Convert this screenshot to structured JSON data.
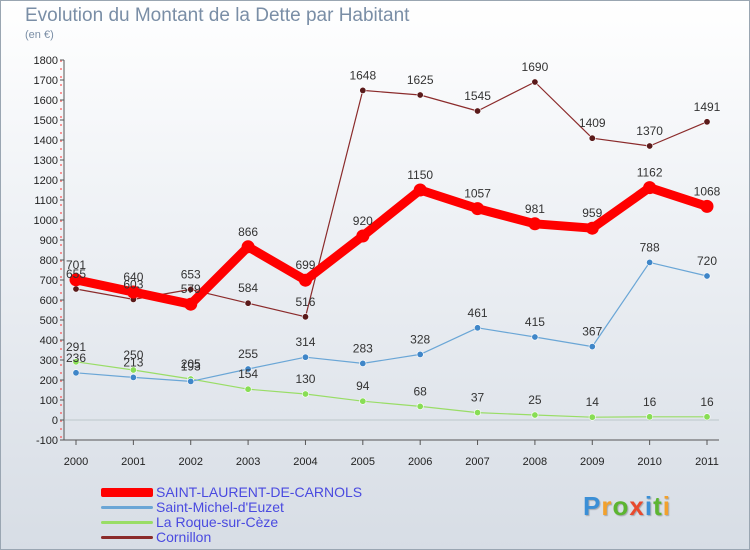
{
  "chart_data": {
    "type": "line",
    "title": "Evolution du Montant de la Dette par Habitant",
    "subtitle": "(en €)",
    "categories": [
      "2000",
      "2001",
      "2002",
      "2003",
      "2004",
      "2005",
      "2006",
      "2007",
      "2008",
      "2009",
      "2010",
      "2011"
    ],
    "ylim": [
      -100,
      1800
    ],
    "yticks": [
      -100,
      0,
      100,
      200,
      300,
      400,
      500,
      600,
      700,
      800,
      900,
      1000,
      1100,
      1200,
      1300,
      1400,
      1500,
      1600,
      1700,
      1800
    ],
    "grid": false,
    "legend_position": "bottom-left",
    "series": [
      {
        "name": "SAINT-LAURENT-DE-CARNOLS",
        "color": "#ff0000",
        "values": [
          701,
          640,
          579,
          866,
          699,
          920,
          1150,
          1057,
          981,
          959,
          1162,
          1068
        ]
      },
      {
        "name": "Saint-Michel-d'Euzet",
        "color": "#6aa6d6",
        "values": [
          236,
          213,
          193,
          255,
          314,
          283,
          328,
          461,
          415,
          367,
          788,
          720
        ]
      },
      {
        "name": "La Roque-sur-Cèze",
        "color": "#99dd66",
        "values": [
          291,
          250,
          205,
          154,
          130,
          94,
          68,
          37,
          25,
          14,
          16,
          16
        ]
      },
      {
        "name": "Cornillon",
        "color": "#8b2b2b",
        "values": [
          655,
          603,
          653,
          584,
          516,
          1648,
          1625,
          1545,
          1690,
          1409,
          1370,
          1491
        ]
      }
    ]
  },
  "brand": {
    "logo_text": "Proxiti",
    "colors": [
      "#3b8fd6",
      "#f2a12d",
      "#5cb531",
      "#e84a2e",
      "#3b8fd6",
      "#5cb531",
      "#f2a12d"
    ]
  }
}
